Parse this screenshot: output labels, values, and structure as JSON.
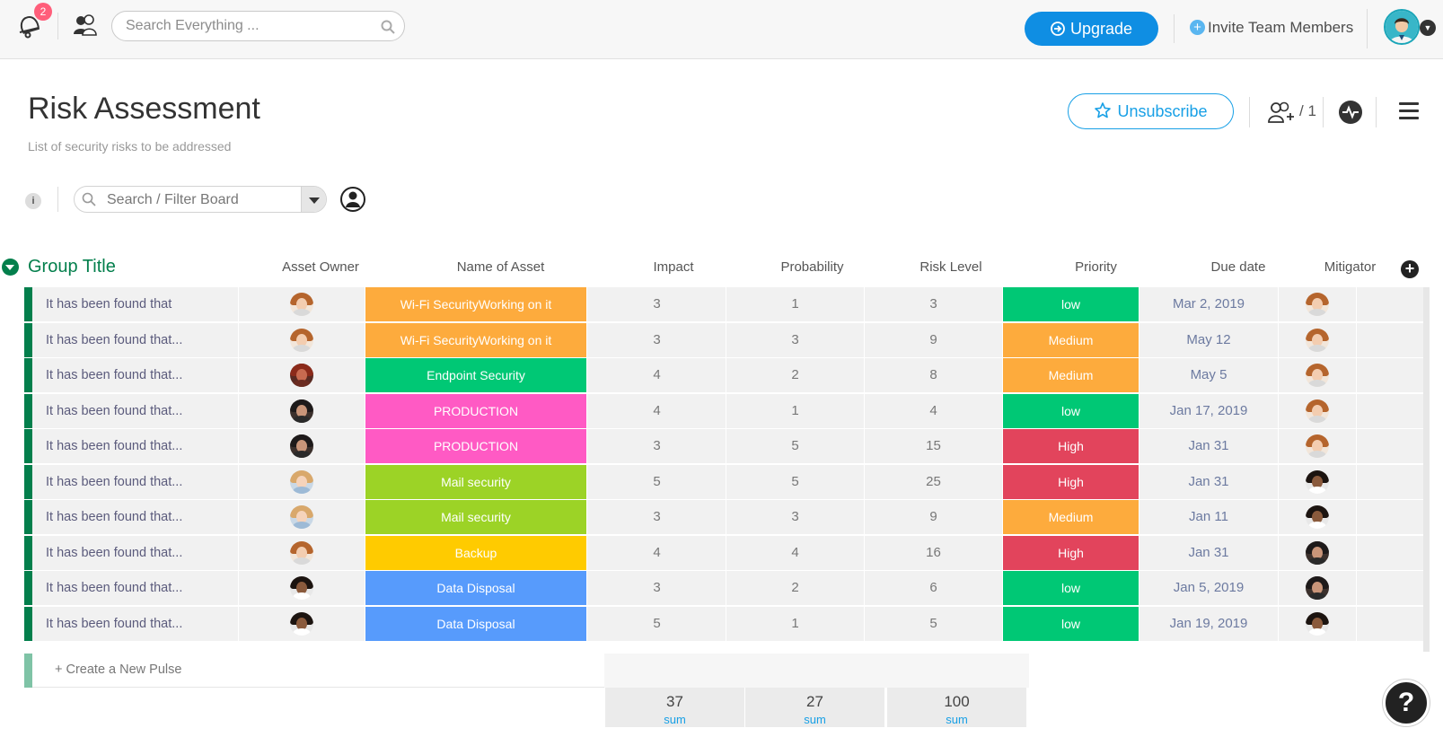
{
  "topbar": {
    "notification_count": "2",
    "search_placeholder": "Search Everything ...",
    "upgrade_label": "Upgrade",
    "invite_label": "Invite Team Members",
    "colors": {
      "upgrade": "#0f8ee3",
      "badge": "#ff5e7a"
    }
  },
  "board": {
    "title": "Risk Assessment",
    "description": "List of security risks to be addressed",
    "unsubscribe_label": "Unsubscribe",
    "members_count": "/ 1",
    "filter_placeholder": "Search / Filter Board",
    "info_label": "i"
  },
  "group": {
    "title": "Group Title",
    "color": "#037f4c",
    "columns": {
      "owner": "Asset Owner",
      "asset": "Name of Asset",
      "impact": "Impact",
      "probability": "Probability",
      "risk": "Risk Level",
      "priority": "Priority",
      "due": "Due date",
      "mitigator": "Mitigator"
    },
    "rows": [
      {
        "name": "It has been found that",
        "owner": "woman",
        "asset": "Wi-Fi SecurityWorking on it",
        "asset_color": "#fdab3d",
        "impact": "3",
        "probability": "1",
        "risk": "3",
        "priority": "low",
        "priority_color": "#00c875",
        "due": "Mar 2, 2019",
        "mitigator": "woman"
      },
      {
        "name": "It has been found that...",
        "owner": "woman",
        "asset": "Wi-Fi SecurityWorking on it",
        "asset_color": "#fdab3d",
        "impact": "3",
        "probability": "3",
        "risk": "9",
        "priority": "Medium",
        "priority_color": "#fdab3d",
        "due": "May 12",
        "mitigator": "woman"
      },
      {
        "name": "It has been found that...",
        "owner": "redhair",
        "asset": "Endpoint Security",
        "asset_color": "#00c875",
        "impact": "4",
        "probability": "2",
        "risk": "8",
        "priority": "Medium",
        "priority_color": "#fdab3d",
        "due": "May 5",
        "mitigator": "woman"
      },
      {
        "name": "It has been found that...",
        "owner": "darkhair",
        "asset": "PRODUCTION",
        "asset_color": "#ff5ac4",
        "impact": "4",
        "probability": "1",
        "risk": "4",
        "priority": "low",
        "priority_color": "#00c875",
        "due": "Jan 17, 2019",
        "mitigator": "woman"
      },
      {
        "name": "It has been found that...",
        "owner": "darkhair",
        "asset": "PRODUCTION",
        "asset_color": "#ff5ac4",
        "impact": "3",
        "probability": "5",
        "risk": "15",
        "priority": "High",
        "priority_color": "#e2445c",
        "due": "Jan 31",
        "mitigator": "woman"
      },
      {
        "name": "It has been found that...",
        "owner": "blonde",
        "asset": "Mail security",
        "asset_color": "#9cd326",
        "impact": "5",
        "probability": "5",
        "risk": "25",
        "priority": "High",
        "priority_color": "#e2445c",
        "due": "Jan 31",
        "mitigator": "man"
      },
      {
        "name": "It has been found that...",
        "owner": "blonde",
        "asset": "Mail security",
        "asset_color": "#9cd326",
        "impact": "3",
        "probability": "3",
        "risk": "9",
        "priority": "Medium",
        "priority_color": "#fdab3d",
        "due": "Jan 11",
        "mitigator": "man"
      },
      {
        "name": "It has been found that...",
        "owner": "woman",
        "asset": "Backup",
        "asset_color": "#ffcb00",
        "impact": "4",
        "probability": "4",
        "risk": "16",
        "priority": "High",
        "priority_color": "#e2445c",
        "due": "Jan 31",
        "mitigator": "darkhair"
      },
      {
        "name": "It has been found that...",
        "owner": "man",
        "asset": "Data Disposal",
        "asset_color": "#579bfc",
        "impact": "3",
        "probability": "2",
        "risk": "6",
        "priority": "low",
        "priority_color": "#00c875",
        "due": "Jan 5, 2019",
        "mitigator": "darkhair"
      },
      {
        "name": "It has been found that...",
        "owner": "man",
        "asset": "Data Disposal",
        "asset_color": "#579bfc",
        "impact": "5",
        "probability": "1",
        "risk": "5",
        "priority": "low",
        "priority_color": "#00c875",
        "due": "Jan 19, 2019",
        "mitigator": "man"
      }
    ],
    "new_pulse_label": "+ Create a New Pulse",
    "sums": [
      {
        "value": "37",
        "label": "sum"
      },
      {
        "value": "27",
        "label": "sum"
      },
      {
        "value": "100",
        "label": "sum"
      }
    ]
  },
  "help_label": "?",
  "icons": [
    "bell-icon",
    "people-icon",
    "search-icon",
    "upgrade-arrow-icon",
    "plus-circle-icon",
    "user-avatar",
    "chevron-down-icon",
    "star-icon",
    "add-member-icon",
    "activity-icon",
    "menu-icon",
    "person-filter-icon",
    "collapse-group-icon",
    "add-column-icon",
    "help-icon"
  ]
}
